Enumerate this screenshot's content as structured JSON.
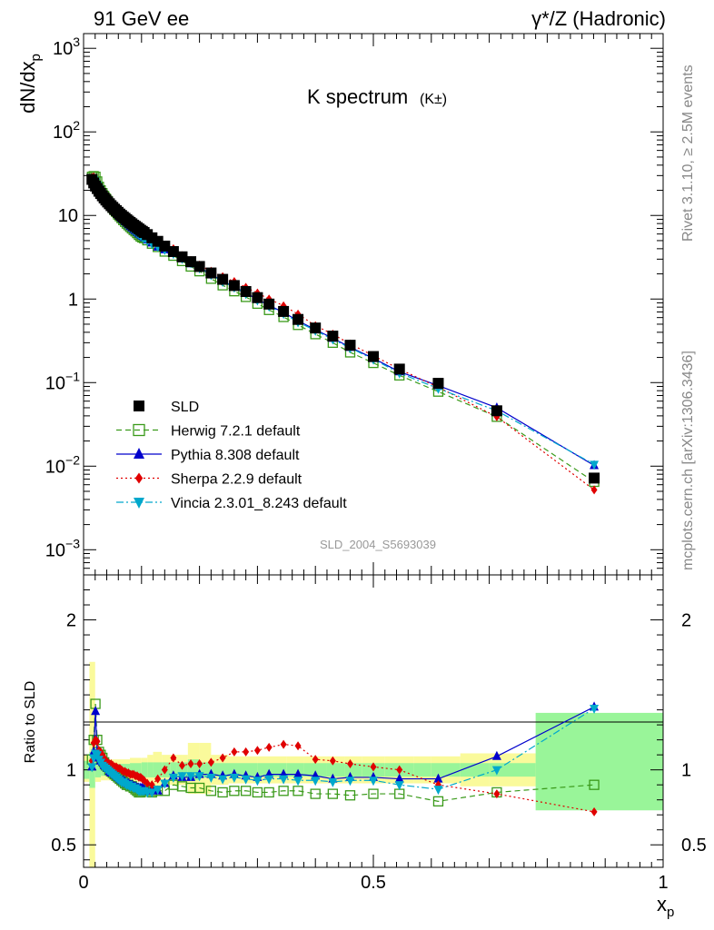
{
  "header": {
    "left": "91 GeV ee",
    "right": "γ*/Z (Hadronic)"
  },
  "side_text": {
    "rivet": "Rivet 3.1.10, ≥ 2.5M events",
    "mcplots": "mcplots.cern.ch [arXiv:1306.3436]"
  },
  "colors": {
    "data": "#000000",
    "herwig": "#3a9a1a",
    "pythia": "#0000cc",
    "sherpa": "#e00000",
    "vincia": "#00a8cc",
    "band_inner": "#99f599",
    "band_outer": "#fafa9b"
  },
  "chart_data": [
    {
      "type": "scatter",
      "panel": "main",
      "title": "K spectrum",
      "title_suffix": "(K±)",
      "watermark": "SLD_2004_S5693039",
      "ylabel": "dN/dx_p",
      "yscale": "log",
      "xlim": [
        0,
        1
      ],
      "ylim": [
        0.0005,
        1500
      ],
      "y_ticks": [
        "10^-3",
        "10^-2",
        "10^-1",
        "1",
        "10",
        "10^2",
        "10^3"
      ],
      "legend_placement": "lower-left",
      "x": [
        0.0145,
        0.0175,
        0.0205,
        0.0235,
        0.0265,
        0.0295,
        0.0325,
        0.0355,
        0.0385,
        0.0415,
        0.0445,
        0.0475,
        0.0505,
        0.0535,
        0.0565,
        0.0595,
        0.0625,
        0.0655,
        0.0685,
        0.0715,
        0.0745,
        0.0775,
        0.0805,
        0.0835,
        0.0865,
        0.0895,
        0.0925,
        0.0955,
        0.0985,
        0.1015,
        0.1045,
        0.11,
        0.118,
        0.128,
        0.14,
        0.155,
        0.17,
        0.185,
        0.2,
        0.22,
        0.24,
        0.26,
        0.28,
        0.3,
        0.32,
        0.345,
        0.37,
        0.4,
        0.43,
        0.46,
        0.5,
        0.545,
        0.612,
        0.713,
        0.881
      ],
      "series": [
        {
          "name": "SLD",
          "marker": "square-filled",
          "values": [
            27.0,
            24.5,
            22.5,
            21.0,
            19.5,
            18.3,
            17.2,
            16.2,
            15.3,
            14.5,
            13.8,
            13.1,
            12.5,
            11.9,
            11.4,
            10.9,
            10.4,
            10.0,
            9.6,
            9.25,
            8.9,
            8.55,
            8.25,
            7.95,
            7.65,
            7.4,
            7.15,
            6.9,
            6.65,
            6.45,
            6.25,
            5.9,
            5.4,
            4.9,
            4.3,
            3.7,
            3.2,
            2.8,
            2.45,
            2.05,
            1.72,
            1.45,
            1.23,
            1.04,
            0.87,
            0.71,
            0.57,
            0.45,
            0.36,
            0.28,
            0.205,
            0.145,
            0.098,
            0.046,
            0.0072
          ]
        },
        {
          "name": "Herwig 7.2.1 default",
          "marker": "square-open",
          "line": "dashed",
          "values": [
            29.0,
            29.5,
            29.0,
            25.5,
            22.0,
            20.0,
            18.5,
            17.1,
            15.9,
            14.9,
            13.9,
            13.1,
            12.3,
            11.6,
            11.0,
            10.3,
            9.8,
            9.3,
            8.8,
            8.4,
            8.0,
            7.65,
            7.3,
            7.0,
            6.7,
            6.45,
            6.15,
            5.85,
            5.6,
            5.45,
            5.35,
            5.05,
            4.6,
            4.2,
            3.7,
            3.3,
            2.85,
            2.45,
            2.15,
            1.75,
            1.46,
            1.24,
            1.06,
            0.88,
            0.74,
            0.61,
            0.49,
            0.38,
            0.3,
            0.23,
            0.172,
            0.122,
            0.078,
            0.039,
            0.0065
          ]
        },
        {
          "name": "Pythia 8.308 default",
          "marker": "triangle-up",
          "line": "solid",
          "values": [
            27.5,
            27.5,
            26.0,
            23.5,
            21.0,
            19.4,
            18.0,
            16.7,
            15.6,
            14.6,
            13.7,
            12.9,
            12.2,
            11.5,
            10.9,
            10.3,
            9.8,
            9.3,
            8.9,
            8.5,
            8.1,
            7.75,
            7.4,
            7.1,
            6.8,
            6.55,
            6.3,
            6.05,
            5.85,
            5.65,
            5.45,
            5.1,
            4.7,
            4.2,
            3.9,
            3.55,
            3.05,
            2.65,
            2.38,
            1.98,
            1.65,
            1.4,
            1.18,
            0.99,
            0.84,
            0.69,
            0.55,
            0.43,
            0.34,
            0.265,
            0.195,
            0.135,
            0.092,
            0.05,
            0.0102
          ]
        },
        {
          "name": "Sherpa 2.2.9 default",
          "marker": "diamond",
          "line": "dotted",
          "values": [
            28.5,
            29.0,
            27.0,
            25.0,
            22.0,
            20.5,
            19.0,
            17.5,
            16.2,
            15.3,
            14.4,
            13.6,
            12.9,
            12.2,
            11.6,
            11.0,
            10.5,
            10.0,
            9.55,
            9.15,
            8.75,
            8.35,
            8.0,
            7.7,
            7.4,
            7.1,
            6.85,
            6.55,
            6.3,
            6.05,
            5.8,
            5.35,
            4.85,
            4.6,
            4.3,
            4.0,
            3.3,
            2.9,
            2.55,
            2.15,
            1.85,
            1.62,
            1.38,
            1.18,
            1.0,
            0.83,
            0.66,
            0.48,
            0.38,
            0.29,
            0.21,
            0.145,
            0.088,
            0.039,
            0.0052
          ]
        },
        {
          "name": "Vincia 2.3.01_8.243 default",
          "marker": "triangle-down",
          "line": "dashdot",
          "values": [
            27.5,
            26.5,
            25.0,
            23.0,
            20.8,
            19.2,
            17.8,
            16.6,
            15.5,
            14.5,
            13.6,
            12.8,
            12.1,
            11.4,
            10.8,
            10.2,
            9.7,
            9.2,
            8.8,
            8.4,
            8.0,
            7.65,
            7.3,
            7.0,
            6.7,
            6.45,
            6.2,
            5.95,
            5.75,
            5.55,
            5.35,
            5.0,
            4.6,
            4.25,
            3.9,
            3.5,
            3.05,
            2.7,
            2.35,
            1.95,
            1.62,
            1.38,
            1.16,
            0.97,
            0.82,
            0.67,
            0.53,
            0.42,
            0.33,
            0.26,
            0.19,
            0.13,
            0.085,
            0.046,
            0.0105
          ]
        }
      ]
    },
    {
      "type": "line",
      "panel": "ratio",
      "ylabel": "Ratio to SLD",
      "xlabel": "x_p",
      "xlim": [
        0,
        1
      ],
      "ylim": [
        0.35,
        2.3
      ],
      "y_ticks": [
        "0.5",
        "1",
        "2"
      ],
      "x_ticks": [
        "0",
        "0.5",
        "1"
      ],
      "x": [
        0.0145,
        0.0175,
        0.0205,
        0.0235,
        0.0265,
        0.0295,
        0.0325,
        0.0355,
        0.0385,
        0.0415,
        0.0445,
        0.0475,
        0.0505,
        0.0535,
        0.0565,
        0.0595,
        0.0625,
        0.0655,
        0.0685,
        0.0715,
        0.0745,
        0.0775,
        0.0805,
        0.0835,
        0.0865,
        0.0895,
        0.0925,
        0.0955,
        0.0985,
        0.1015,
        0.1045,
        0.11,
        0.118,
        0.128,
        0.14,
        0.155,
        0.17,
        0.185,
        0.2,
        0.22,
        0.24,
        0.26,
        0.28,
        0.3,
        0.32,
        0.345,
        0.37,
        0.4,
        0.43,
        0.46,
        0.5,
        0.545,
        0.612,
        0.713,
        0.881
      ],
      "band_edges": [
        0.0,
        0.01,
        0.02,
        0.03,
        0.05,
        0.08,
        0.1,
        0.11,
        0.12,
        0.135,
        0.15,
        0.16,
        0.17,
        0.18,
        0.2,
        0.22,
        0.25,
        0.3,
        0.35,
        0.38,
        0.42,
        0.45,
        0.48,
        0.52,
        0.57,
        0.6,
        0.65,
        0.7,
        0.78,
        1.0
      ],
      "band_inner": [
        [
          0.94,
          1.06
        ],
        [
          0.88,
          1.12
        ],
        [
          0.95,
          1.05
        ],
        [
          0.96,
          1.04
        ],
        [
          0.96,
          1.04
        ],
        [
          0.955,
          1.045
        ],
        [
          0.95,
          1.05
        ],
        [
          0.95,
          1.05
        ],
        [
          0.95,
          1.05
        ],
        [
          0.95,
          1.05
        ],
        [
          0.95,
          1.05
        ],
        [
          0.95,
          1.05
        ],
        [
          0.95,
          1.05
        ],
        [
          0.93,
          1.07
        ],
        [
          0.95,
          1.05
        ],
        [
          0.955,
          1.045
        ],
        [
          0.955,
          1.045
        ],
        [
          0.955,
          1.045
        ],
        [
          0.955,
          1.045
        ],
        [
          0.955,
          1.045
        ],
        [
          0.955,
          1.045
        ],
        [
          0.955,
          1.045
        ],
        [
          0.955,
          1.045
        ],
        [
          0.955,
          1.045
        ],
        [
          0.955,
          1.045
        ],
        [
          0.955,
          1.045
        ],
        [
          0.955,
          1.045
        ],
        [
          0.955,
          1.045
        ],
        [
          0.73,
          1.38
        ]
      ],
      "band_outer": [
        [
          0.92,
          1.1
        ],
        [
          0.3,
          1.72
        ],
        [
          0.92,
          1.08
        ],
        [
          0.93,
          1.07
        ],
        [
          0.93,
          1.07
        ],
        [
          0.92,
          1.08
        ],
        [
          0.92,
          1.08
        ],
        [
          0.9,
          1.1
        ],
        [
          0.88,
          1.12
        ],
        [
          0.9,
          1.1
        ],
        [
          0.9,
          1.1
        ],
        [
          0.9,
          1.1
        ],
        [
          0.9,
          1.1
        ],
        [
          0.84,
          1.18
        ],
        [
          0.84,
          1.18
        ],
        [
          0.9,
          1.1
        ],
        [
          0.91,
          1.09
        ],
        [
          0.91,
          1.09
        ],
        [
          0.91,
          1.09
        ],
        [
          0.91,
          1.09
        ],
        [
          0.91,
          1.09
        ],
        [
          0.91,
          1.09
        ],
        [
          0.91,
          1.09
        ],
        [
          0.91,
          1.09
        ],
        [
          0.91,
          1.09
        ],
        [
          0.91,
          1.09
        ],
        [
          0.89,
          1.11
        ],
        [
          0.89,
          1.11
        ],
        [
          0.89,
          1.11
        ],
        [
          0.3,
          1.7
        ]
      ],
      "series": [
        {
          "name": "Herwig 7.2.1 default",
          "values": [
            1.07,
            1.2,
            1.44,
            1.2,
            1.12,
            1.1,
            1.08,
            1.05,
            1.03,
            1.02,
            1.0,
            0.99,
            0.98,
            0.97,
            0.96,
            0.95,
            0.94,
            0.93,
            0.92,
            0.91,
            0.9,
            0.9,
            0.89,
            0.89,
            0.88,
            0.87,
            0.86,
            0.85,
            0.85,
            0.86,
            0.87,
            0.86,
            0.85,
            0.86,
            0.86,
            0.9,
            0.89,
            0.88,
            0.88,
            0.86,
            0.85,
            0.86,
            0.86,
            0.85,
            0.85,
            0.86,
            0.86,
            0.84,
            0.84,
            0.83,
            0.84,
            0.84,
            0.79,
            0.85,
            0.9
          ]
        },
        {
          "name": "Pythia 8.308 default",
          "values": [
            1.02,
            1.12,
            1.39,
            1.12,
            1.08,
            1.06,
            1.05,
            1.03,
            1.02,
            1.01,
            0.99,
            0.98,
            0.98,
            0.97,
            0.96,
            0.95,
            0.94,
            0.93,
            0.93,
            0.92,
            0.91,
            0.91,
            0.9,
            0.9,
            0.89,
            0.89,
            0.88,
            0.88,
            0.88,
            0.88,
            0.87,
            0.86,
            0.87,
            0.86,
            0.91,
            0.96,
            0.95,
            0.95,
            0.97,
            0.97,
            0.96,
            0.97,
            0.96,
            0.95,
            0.97,
            0.97,
            0.97,
            0.96,
            0.94,
            0.95,
            0.95,
            0.94,
            0.94,
            1.09,
            1.42
          ]
        },
        {
          "name": "Sherpa 2.2.9 default",
          "values": [
            1.06,
            1.18,
            1.2,
            1.19,
            1.13,
            1.12,
            1.1,
            1.08,
            1.06,
            1.05,
            1.04,
            1.04,
            1.03,
            1.02,
            1.02,
            1.01,
            1.01,
            1.0,
            0.99,
            0.99,
            0.98,
            0.98,
            0.97,
            0.97,
            0.97,
            0.96,
            0.96,
            0.95,
            0.95,
            0.94,
            0.93,
            0.91,
            0.9,
            0.94,
            1.0,
            1.08,
            1.03,
            1.04,
            1.04,
            1.05,
            1.08,
            1.12,
            1.12,
            1.13,
            1.15,
            1.17,
            1.16,
            1.07,
            1.06,
            1.04,
            1.02,
            1.0,
            0.9,
            0.84,
            0.72
          ]
        },
        {
          "name": "Vincia 2.3.01_8.243 default",
          "values": [
            1.02,
            1.08,
            1.11,
            1.1,
            1.07,
            1.05,
            1.03,
            1.02,
            1.01,
            1.0,
            0.99,
            0.98,
            0.97,
            0.96,
            0.95,
            0.94,
            0.93,
            0.92,
            0.92,
            0.91,
            0.9,
            0.9,
            0.89,
            0.89,
            0.88,
            0.88,
            0.87,
            0.86,
            0.86,
            0.86,
            0.86,
            0.85,
            0.85,
            0.87,
            0.91,
            0.95,
            0.96,
            0.96,
            0.96,
            0.95,
            0.94,
            0.95,
            0.94,
            0.93,
            0.94,
            0.94,
            0.93,
            0.93,
            0.92,
            0.93,
            0.93,
            0.9,
            0.87,
            1.0,
            1.41
          ]
        }
      ]
    }
  ]
}
